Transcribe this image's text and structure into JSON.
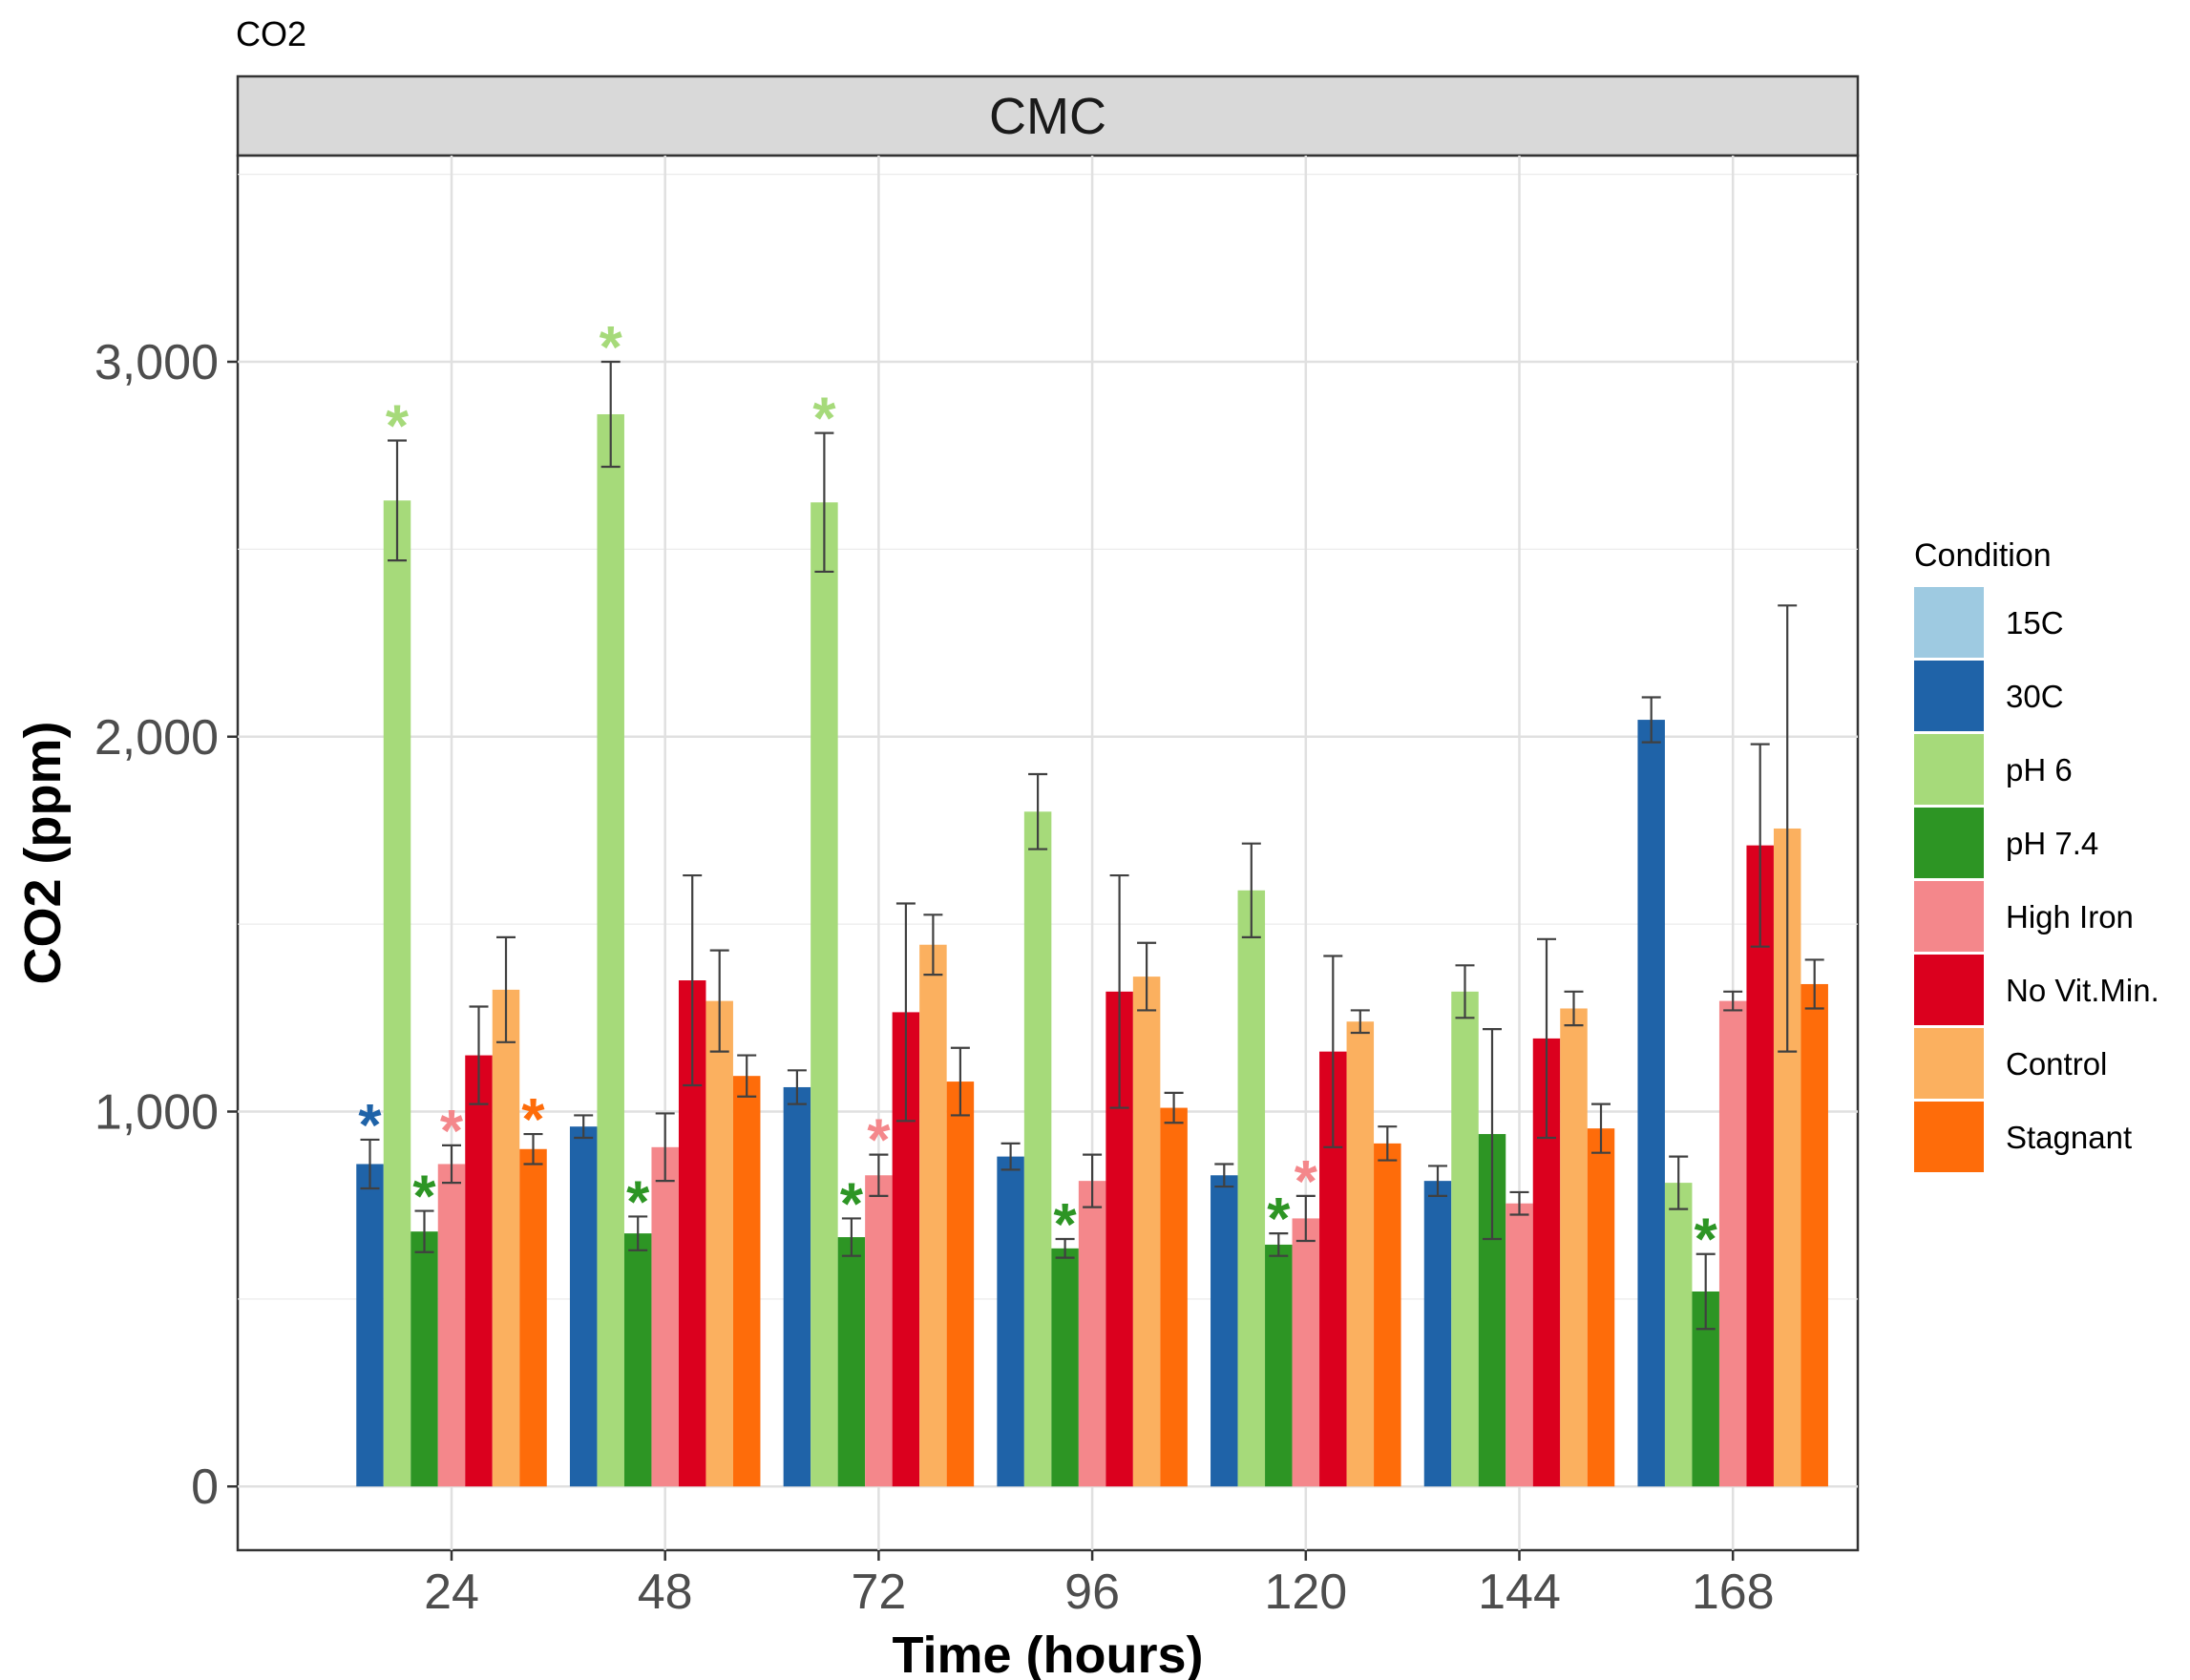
{
  "plot_title": "CO2",
  "chart_data": {
    "type": "bar",
    "title": "CO2",
    "facet": "CMC",
    "xlabel": "Time (hours)",
    "ylabel": "CO2 (ppm)",
    "categories": [
      "24",
      "48",
      "72",
      "96",
      "120",
      "144",
      "168"
    ],
    "ylim": [
      -170,
      3550
    ],
    "y_ticks": [
      0,
      1000,
      2000,
      3000
    ],
    "y_tick_labels": [
      "0",
      "1,000",
      "2,000",
      "3,000"
    ],
    "grid": true,
    "legend": {
      "title": "Condition",
      "position": "right"
    },
    "series": [
      {
        "name": "15C",
        "color": "#9ECAE1",
        "values": [
          null,
          null,
          null,
          null,
          null,
          null,
          null
        ],
        "err": [
          null,
          null,
          null,
          null,
          null,
          null,
          null
        ],
        "sig": [
          false,
          false,
          false,
          false,
          false,
          false,
          false
        ]
      },
      {
        "name": "30C",
        "color": "#1F63A8",
        "values": [
          860,
          960,
          1065,
          880,
          830,
          815,
          2045
        ],
        "err": [
          65,
          30,
          45,
          35,
          30,
          40,
          60
        ],
        "sig": [
          true,
          false,
          false,
          false,
          false,
          false,
          false
        ]
      },
      {
        "name": "pH 6",
        "color": "#A6DA7A",
        "values": [
          2630,
          2860,
          2625,
          1800,
          1590,
          1320,
          810
        ],
        "err": [
          160,
          140,
          185,
          100,
          125,
          70,
          70
        ],
        "sig": [
          true,
          true,
          true,
          false,
          false,
          false,
          false
        ]
      },
      {
        "name": "pH 7.4",
        "color": "#2D9524",
        "values": [
          680,
          675,
          665,
          635,
          645,
          940,
          520
        ],
        "err": [
          55,
          45,
          50,
          25,
          30,
          280,
          100
        ],
        "sig": [
          true,
          true,
          true,
          true,
          true,
          false,
          true
        ]
      },
      {
        "name": "High Iron",
        "color": "#F4878B",
        "values": [
          860,
          905,
          830,
          815,
          715,
          755,
          1295
        ],
        "err": [
          50,
          90,
          55,
          70,
          60,
          30,
          25
        ],
        "sig": [
          true,
          false,
          true,
          false,
          true,
          false,
          false
        ]
      },
      {
        "name": "No Vit.Min.",
        "color": "#DB001E",
        "values": [
          1150,
          1350,
          1265,
          1320,
          1160,
          1195,
          1710
        ],
        "err": [
          130,
          280,
          290,
          310,
          255,
          265,
          270
        ],
        "sig": [
          false,
          false,
          false,
          false,
          false,
          false,
          false
        ]
      },
      {
        "name": "Control",
        "color": "#FBB05F",
        "values": [
          1325,
          1295,
          1445,
          1360,
          1240,
          1275,
          1755
        ],
        "err": [
          140,
          135,
          80,
          90,
          30,
          45,
          595
        ],
        "sig": [
          false,
          false,
          false,
          false,
          false,
          false,
          false
        ]
      },
      {
        "name": "Stagnant",
        "color": "#FE6C0A",
        "values": [
          900,
          1095,
          1080,
          1010,
          915,
          955,
          1340
        ],
        "err": [
          40,
          55,
          90,
          40,
          45,
          65,
          65
        ],
        "sig": [
          true,
          false,
          false,
          false,
          false,
          false,
          false
        ]
      }
    ]
  }
}
